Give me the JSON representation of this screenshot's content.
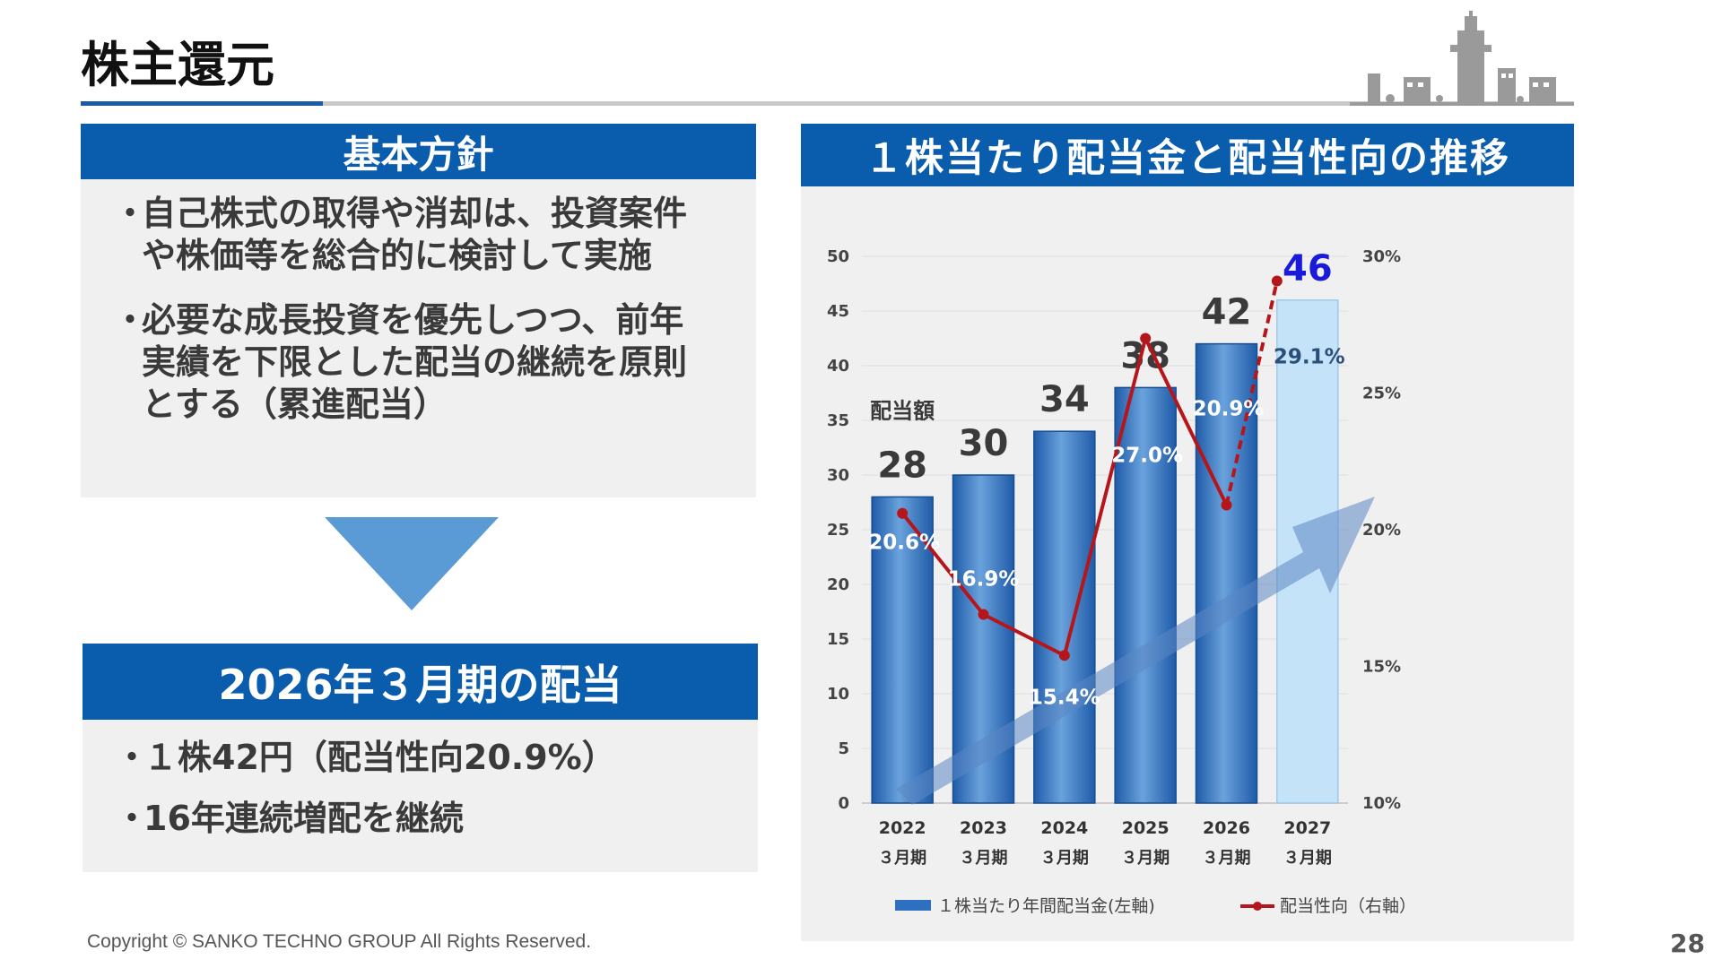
{
  "title": "株主還元",
  "policy": {
    "heading": "基本方針",
    "bullets": [
      {
        "mark": "・",
        "lines": [
          "自己株式の取得や消却は、投資案件",
          "や株価等を総合的に検討して実施"
        ]
      },
      {
        "mark": "・",
        "lines": [
          "必要な成長投資を優先しつつ、前年",
          "実績を下限とした配当の継続を原則",
          "とする（累進配当）"
        ]
      }
    ]
  },
  "dividend": {
    "heading": "2026年３月期の配当",
    "bullets": [
      {
        "mark": "・",
        "text": "１株42円（配当性向20.9%）"
      },
      {
        "mark": "・",
        "text": "16年連続増配を継続"
      }
    ]
  },
  "chart_title": "１株当たり配当金と配当性向の推移",
  "chart_data": {
    "type": "bar",
    "categories": [
      "2022",
      "2023",
      "2024",
      "2025",
      "2026",
      "2027"
    ],
    "category_sublabel": "３月期",
    "series": [
      {
        "name": "１株当たり年間配当金(左軸)",
        "axis": "left",
        "type": "bar",
        "values": [
          28,
          30,
          34,
          38,
          42,
          46
        ],
        "color": "#2e6fc0",
        "forecast_color": "#c5e3f8",
        "value_labels": [
          "28",
          "30",
          "34",
          "38",
          "42",
          "46"
        ],
        "forecast_label_color": "#1a1adb"
      },
      {
        "name": "配当性向（右軸）",
        "axis": "right",
        "type": "line",
        "values": [
          20.6,
          16.9,
          15.4,
          27.0,
          20.9,
          29.1
        ],
        "color": "#b5161b",
        "value_labels": [
          "20.6%",
          "16.9%",
          "15.4%",
          "27.0%",
          "20.9%",
          "29.1%"
        ]
      }
    ],
    "bar_annotation": "配当額",
    "y_left": {
      "min": 0,
      "max": 50,
      "ticks": [
        "0",
        "5",
        "10",
        "15",
        "20",
        "25",
        "30",
        "35",
        "40",
        "45",
        "50"
      ]
    },
    "y_right": {
      "min": 10,
      "max": 30,
      "ticks": [
        "10%",
        "15%",
        "20%",
        "25%",
        "30%"
      ]
    },
    "forecast_index": 5,
    "legend_position": "bottom",
    "grid": true
  },
  "copyright": "Copyright © SANKO TECHNO GROUP All Rights Reserved.",
  "page_number": "28",
  "colors": {
    "header_blue": "#0a5cad",
    "panel_grey": "#f0f0f0",
    "arrow_blue": "#5b9bd5"
  }
}
